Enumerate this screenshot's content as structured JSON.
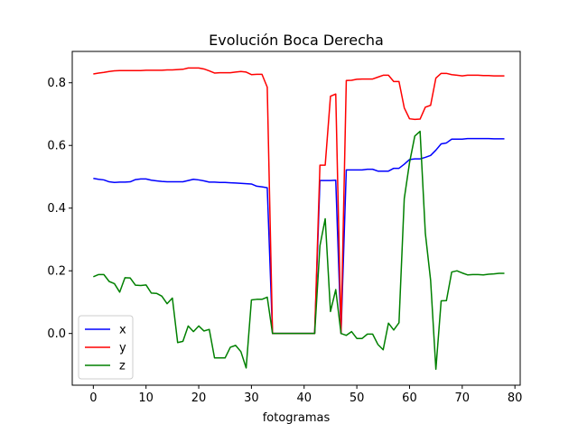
{
  "chart_data": {
    "type": "line",
    "title": "Evolución Boca Derecha",
    "xlabel": "fotogramas",
    "ylabel": "",
    "xlim": [
      -4,
      81
    ],
    "ylim": [
      -0.165,
      0.9
    ],
    "xticks": [
      0,
      10,
      20,
      30,
      40,
      50,
      60,
      70,
      80
    ],
    "yticks": [
      0.0,
      0.2,
      0.4,
      0.6,
      0.8
    ],
    "ytick_labels": [
      "0.0",
      "0.2",
      "0.4",
      "0.6",
      "0.8"
    ],
    "grid": false,
    "legend_position": "lower-left",
    "x": [
      0,
      1,
      2,
      3,
      4,
      5,
      6,
      7,
      8,
      9,
      10,
      11,
      12,
      13,
      14,
      15,
      16,
      17,
      18,
      19,
      20,
      21,
      22,
      23,
      24,
      25,
      26,
      27,
      28,
      29,
      30,
      31,
      32,
      33,
      34,
      35,
      36,
      37,
      38,
      39,
      40,
      41,
      42,
      43,
      44,
      45,
      46,
      47,
      48,
      49,
      50,
      51,
      52,
      53,
      54,
      55,
      56,
      57,
      58,
      59,
      60,
      61,
      62,
      63,
      64,
      65,
      66,
      67,
      68,
      69,
      70,
      71,
      72,
      73,
      74,
      75,
      76,
      77,
      78
    ],
    "series": [
      {
        "name": "x",
        "color": "#0000ff",
        "values": [
          0.495,
          0.492,
          0.49,
          0.484,
          0.482,
          0.483,
          0.483,
          0.484,
          0.491,
          0.493,
          0.493,
          0.489,
          0.487,
          0.485,
          0.484,
          0.484,
          0.484,
          0.484,
          0.488,
          0.492,
          0.49,
          0.487,
          0.483,
          0.483,
          0.482,
          0.482,
          0.481,
          0.48,
          0.479,
          0.478,
          0.477,
          0.47,
          0.468,
          0.465,
          0.0,
          0.0,
          0.0,
          0.0,
          0.0,
          0.0,
          0.0,
          0.0,
          0.0,
          0.488,
          0.488,
          0.488,
          0.489,
          0.0,
          0.522,
          0.522,
          0.522,
          0.522,
          0.524,
          0.524,
          0.518,
          0.518,
          0.518,
          0.527,
          0.527,
          0.54,
          0.555,
          0.557,
          0.557,
          0.562,
          0.568,
          0.585,
          0.605,
          0.608,
          0.62,
          0.62,
          0.62,
          0.622,
          0.622,
          0.622,
          0.622,
          0.622,
          0.621,
          0.621,
          0.621
        ]
      },
      {
        "name": "y",
        "color": "#ff0000",
        "values": [
          0.828,
          0.831,
          0.833,
          0.836,
          0.838,
          0.839,
          0.839,
          0.839,
          0.839,
          0.839,
          0.84,
          0.84,
          0.84,
          0.84,
          0.841,
          0.841,
          0.842,
          0.843,
          0.847,
          0.847,
          0.847,
          0.844,
          0.838,
          0.831,
          0.832,
          0.832,
          0.832,
          0.834,
          0.836,
          0.834,
          0.826,
          0.827,
          0.827,
          0.786,
          0.0,
          0.0,
          0.0,
          0.0,
          0.0,
          0.0,
          0.0,
          0.0,
          0.0,
          0.537,
          0.537,
          0.757,
          0.764,
          0.0,
          0.807,
          0.808,
          0.811,
          0.812,
          0.812,
          0.812,
          0.818,
          0.824,
          0.824,
          0.804,
          0.804,
          0.72,
          0.685,
          0.683,
          0.684,
          0.722,
          0.728,
          0.815,
          0.83,
          0.83,
          0.826,
          0.824,
          0.822,
          0.824,
          0.824,
          0.824,
          0.823,
          0.823,
          0.822,
          0.822,
          0.822
        ]
      },
      {
        "name": "z",
        "color": "#008000",
        "values": [
          0.181,
          0.188,
          0.188,
          0.166,
          0.159,
          0.132,
          0.178,
          0.177,
          0.154,
          0.153,
          0.155,
          0.129,
          0.128,
          0.119,
          0.095,
          0.113,
          -0.029,
          -0.025,
          0.024,
          0.006,
          0.024,
          0.008,
          0.013,
          -0.078,
          -0.078,
          -0.078,
          -0.044,
          -0.038,
          -0.058,
          -0.11,
          0.107,
          0.109,
          0.109,
          0.116,
          0.0,
          0.0,
          0.0,
          0.0,
          0.0,
          0.0,
          0.0,
          0.0,
          0.0,
          0.28,
          0.366,
          0.07,
          0.14,
          0.0,
          -0.006,
          0.006,
          -0.016,
          -0.016,
          -0.002,
          -0.002,
          -0.035,
          -0.052,
          0.033,
          0.011,
          0.034,
          0.43,
          0.545,
          0.63,
          0.645,
          0.32,
          0.17,
          -0.114,
          0.104,
          0.105,
          0.196,
          0.2,
          0.193,
          0.187,
          0.188,
          0.188,
          0.187,
          0.189,
          0.19,
          0.192,
          0.192
        ]
      }
    ]
  }
}
